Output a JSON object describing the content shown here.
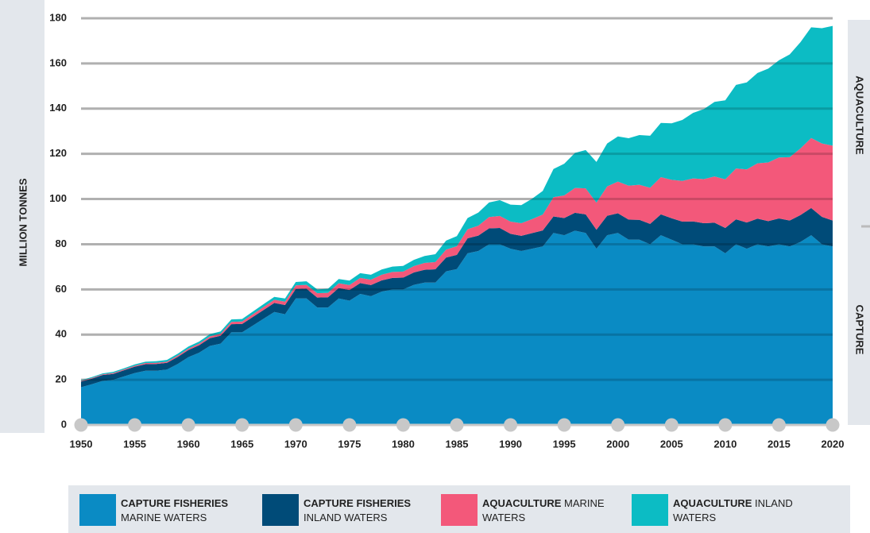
{
  "chart_data": {
    "type": "stacked_area",
    "ylabel": "MILLION TONNES",
    "annotations": [
      "AQUACULTURE",
      "CAPTURE"
    ],
    "x": [
      1950,
      1951,
      1952,
      1953,
      1954,
      1955,
      1956,
      1957,
      1958,
      1959,
      1960,
      1961,
      1962,
      1963,
      1964,
      1965,
      1966,
      1967,
      1968,
      1969,
      1970,
      1971,
      1972,
      1973,
      1974,
      1975,
      1976,
      1977,
      1978,
      1979,
      1980,
      1981,
      1982,
      1983,
      1984,
      1985,
      1986,
      1987,
      1988,
      1989,
      1990,
      1991,
      1992,
      1993,
      1994,
      1995,
      1996,
      1997,
      1998,
      1999,
      2000,
      2001,
      2002,
      2003,
      2004,
      2005,
      2006,
      2007,
      2008,
      2009,
      2010,
      2011,
      2012,
      2013,
      2014,
      2015,
      2016,
      2017,
      2018,
      2019,
      2020
    ],
    "xlim": [
      1950,
      2020
    ],
    "xticks": [
      1950,
      1955,
      1960,
      1965,
      1970,
      1975,
      1980,
      1985,
      1990,
      1995,
      2000,
      2005,
      2010,
      2015,
      2020
    ],
    "ylim": [
      0,
      180
    ],
    "yticks": [
      0,
      20,
      40,
      60,
      80,
      100,
      120,
      140,
      160,
      180
    ],
    "grid": true,
    "series": [
      {
        "name": "CAPTURE FISHERIES",
        "detail": "MARINE WATERS",
        "color": "#0a8bc4",
        "values": [
          16.7,
          18,
          19.5,
          20,
          21.5,
          23,
          24,
          24,
          24.5,
          27,
          30,
          32,
          35,
          36,
          41,
          41,
          44,
          47,
          50,
          49,
          56,
          56,
          52,
          52,
          56,
          55,
          58,
          57,
          59,
          60,
          60,
          62,
          63,
          63,
          68,
          69,
          76,
          77,
          80,
          80,
          78,
          77,
          78,
          79,
          85,
          84,
          86,
          85,
          78,
          84,
          85,
          82,
          82,
          80,
          84,
          82,
          80,
          80,
          79,
          79,
          76,
          80,
          78,
          80,
          79,
          80,
          79,
          81,
          84,
          80,
          79
        ]
      },
      {
        "name": "CAPTURE FISHERIES",
        "detail": "INLAND WATERS",
        "color": "#004b78",
        "values": [
          2.5,
          2.5,
          2.6,
          2.6,
          2.7,
          2.8,
          2.9,
          3,
          3,
          3.1,
          3.2,
          3.3,
          3.4,
          3.5,
          3.6,
          3.7,
          3.8,
          3.9,
          4,
          4.1,
          4.2,
          4.3,
          4.4,
          4.5,
          4.6,
          4.7,
          4.8,
          4.9,
          5,
          5.1,
          5.2,
          5.5,
          5.7,
          5.9,
          6.1,
          6.3,
          6.6,
          6.8,
          7,
          7.2,
          6.6,
          6.7,
          6.9,
          7.1,
          7.3,
          7.6,
          7.9,
          8.2,
          8.4,
          8.6,
          8.7,
          8.9,
          8.8,
          9,
          9.2,
          9.5,
          10,
          10.1,
          10.3,
          10.5,
          11.2,
          11,
          11.6,
          11.3,
          11.2,
          11.4,
          11.5,
          11.9,
          12,
          12.1,
          11.5
        ]
      },
      {
        "name": "AQUACULTURE",
        "detail": "MARINE WATERS",
        "color": "#f3587a",
        "values": [
          0.3,
          0.3,
          0.3,
          0.4,
          0.4,
          0.4,
          0.5,
          0.5,
          0.5,
          0.6,
          0.6,
          0.7,
          0.8,
          0.9,
          1,
          1.1,
          1.2,
          1.3,
          1.4,
          1.5,
          1.6,
          1.7,
          1.9,
          2,
          2.1,
          2.2,
          2.3,
          2.4,
          2.5,
          2.6,
          2.7,
          2.8,
          3,
          3.2,
          3.5,
          3.8,
          4,
          4.4,
          5,
          5.3,
          5.4,
          5.6,
          6.2,
          7,
          8.5,
          10,
          11,
          11.5,
          12,
          13,
          14,
          15,
          15.5,
          16,
          16.5,
          17,
          18,
          19,
          19.5,
          20.5,
          21.5,
          22.5,
          23.5,
          24.5,
          26,
          27,
          28,
          29.5,
          31,
          32.5,
          33.1
        ]
      },
      {
        "name": "AQUACULTURE",
        "detail": "INLAND WATERS",
        "color": "#0cbcc4",
        "values": [
          0.3,
          0.4,
          0.4,
          0.5,
          0.5,
          0.6,
          0.6,
          0.7,
          0.8,
          0.8,
          0.9,
          0.9,
          1,
          1,
          1.1,
          1.1,
          1.2,
          1.3,
          1.3,
          1.4,
          1.5,
          1.6,
          1.7,
          1.8,
          1.9,
          2,
          2.1,
          2.2,
          2.3,
          2.4,
          2.5,
          2.8,
          3.1,
          3.5,
          4,
          4.5,
          5,
          5.8,
          6.5,
          7,
          7.5,
          8,
          9,
          10.5,
          12.5,
          14,
          15.5,
          17,
          18,
          19,
          20,
          21,
          22,
          23,
          24,
          25,
          27,
          29,
          31,
          33,
          35,
          37,
          38.5,
          40,
          41.5,
          43,
          45.5,
          47,
          49,
          51,
          53
        ]
      }
    ]
  }
}
